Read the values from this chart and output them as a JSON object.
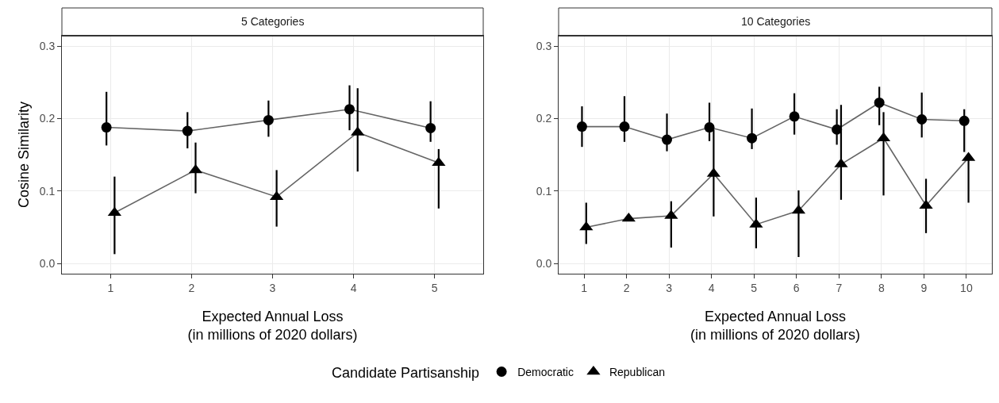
{
  "chart_data": [
    {
      "type": "line",
      "title": "5 Categories",
      "xlabel": "Expected Annual Loss\n(in millions of 2020 dollars)",
      "ylabel": "Cosine Similarity",
      "legend_title": "Candidate Partisanship",
      "legend": "bottom",
      "grid": true,
      "xlim": [
        0.4,
        5.6
      ],
      "xticks": [
        1,
        2,
        3,
        4,
        5
      ],
      "ylim": [
        -0.014,
        0.3145
      ],
      "yticks": [
        {
          "value": 0.0,
          "label": "0.0"
        },
        0.1,
        0.2,
        0.3
      ],
      "series": [
        {
          "name": "Democratic",
          "color": "#000000",
          "marker": "circle",
          "x": [
            0.95,
            1.95,
            2.95,
            3.95,
            4.95
          ],
          "values": [
            0.188,
            0.183,
            0.198,
            0.213,
            0.187
          ],
          "errors": [
            [
              0.163,
              0.237
            ],
            [
              0.159,
              0.209
            ],
            [
              0.175,
              0.225
            ],
            [
              0.184,
              0.246
            ],
            [
              0.168,
              0.224
            ]
          ]
        },
        {
          "name": "Republican",
          "color": "#000000",
          "marker": "triangle",
          "x": [
            1.05,
            2.05,
            3.05,
            4.05,
            5.05
          ],
          "values": [
            0.07,
            0.129,
            0.092,
            0.181,
            0.139
          ],
          "errors": [
            [
              0.013,
              0.12
            ],
            [
              0.097,
              0.167
            ],
            [
              0.051,
              0.129
            ],
            [
              0.127,
              0.242
            ],
            [
              0.076,
              0.158
            ]
          ]
        }
      ]
    },
    {
      "type": "line",
      "title": "10 Categories",
      "xlabel": "Expected Annual Loss\n(in millions of 2020 dollars)",
      "legend": "bottom",
      "grid": true,
      "xlim": [
        0.4,
        10.6
      ],
      "xticks": [
        1,
        2,
        3,
        4,
        5,
        6,
        7,
        8,
        9,
        10
      ],
      "ylim": [
        -0.014,
        0.3145
      ],
      "yticks": [
        {
          "value": 0.0,
          "label": "0.0"
        },
        0.1,
        0.2,
        0.3
      ],
      "series": [
        {
          "name": "Democratic",
          "color": "#000000",
          "marker": "circle",
          "x": [
            0.95,
            1.95,
            2.95,
            3.95,
            4.95,
            5.95,
            6.95,
            7.95,
            8.95,
            9.95
          ],
          "values": [
            0.189,
            0.189,
            0.171,
            0.188,
            0.173,
            0.203,
            0.185,
            0.222,
            0.199,
            0.197
          ],
          "errors": [
            [
              0.161,
              0.217
            ],
            [
              0.168,
              0.231
            ],
            [
              0.155,
              0.207
            ],
            [
              0.169,
              0.222
            ],
            [
              0.158,
              0.214
            ],
            [
              0.178,
              0.235
            ],
            [
              0.164,
              0.213
            ],
            [
              0.191,
              0.244
            ],
            [
              0.174,
              0.236
            ],
            [
              0.154,
              0.213
            ]
          ]
        },
        {
          "name": "Republican",
          "color": "#000000",
          "marker": "triangle",
          "x": [
            1.05,
            2.05,
            3.05,
            4.05,
            5.05,
            6.05,
            7.05,
            8.05,
            9.05,
            10.05
          ],
          "values": [
            0.05,
            0.062,
            0.066,
            0.124,
            0.054,
            0.073,
            0.137,
            0.173,
            0.08,
            0.146
          ],
          "errors": [
            [
              0.027,
              0.084
            ],
            null,
            [
              0.022,
              0.086
            ],
            [
              0.065,
              0.185
            ],
            [
              0.021,
              0.091
            ],
            [
              0.009,
              0.101
            ],
            [
              0.088,
              0.219
            ],
            [
              0.094,
              0.209
            ],
            [
              0.042,
              0.117
            ],
            [
              0.084,
              0.152
            ]
          ]
        }
      ]
    }
  ]
}
